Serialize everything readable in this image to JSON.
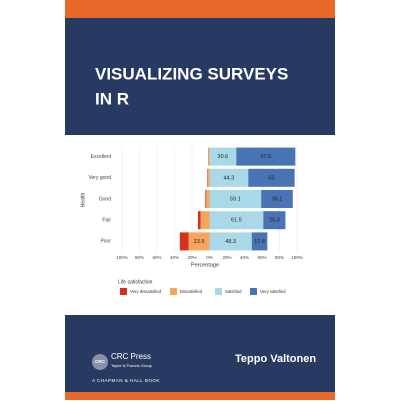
{
  "cover": {
    "title": [
      "VISUALIZING SURVEYS",
      "IN R"
    ],
    "author": "Teppo Valtonen",
    "logo_text": "CRC",
    "publisher": "CRC Press",
    "publisher_group": "Taylor & Francis Group",
    "imprint": "A CHAPMAN & HALL BOOK"
  },
  "chart_data": {
    "type": "diverging_bar",
    "categories": [
      "Excellent",
      "Very good",
      "Good",
      "Fair",
      "Poor"
    ],
    "series": [
      {
        "name": "Very dissatisfied",
        "color": "#d7301f",
        "values": [
          0.4,
          0.5,
          1,
          2.9,
          10
        ]
      },
      {
        "name": "Dissatisfied",
        "color": "#f5a65b",
        "values": [
          1,
          2.2,
          3.8,
          10.3,
          23.9
        ]
      },
      {
        "name": "Satisfied",
        "color": "#a9d9e9",
        "values": [
          30.6,
          44.3,
          59.1,
          61.5,
          48.3
        ]
      },
      {
        "name": "Very satisfied",
        "color": "#4a73b3",
        "values": [
          67.5,
          53,
          36.1,
          25.3,
          17.8
        ]
      }
    ],
    "xlim": [
      -100,
      100
    ],
    "xticks": [
      {
        "value": -100,
        "label": "100%"
      },
      {
        "value": -80,
        "label": "80%"
      },
      {
        "value": -60,
        "label": "60%"
      },
      {
        "value": -40,
        "label": "40%"
      },
      {
        "value": -20,
        "label": "20%"
      },
      {
        "value": 0,
        "label": "0%"
      },
      {
        "value": 20,
        "label": "20%"
      },
      {
        "value": 40,
        "label": "40%"
      },
      {
        "value": 60,
        "label": "60%"
      },
      {
        "value": 80,
        "label": "80%"
      },
      {
        "value": 100,
        "label": "100%"
      }
    ],
    "x_label": "Percentage",
    "y_label": "Health",
    "legend_title": "Life satisfaction",
    "grid": true,
    "legend": "bottom"
  }
}
